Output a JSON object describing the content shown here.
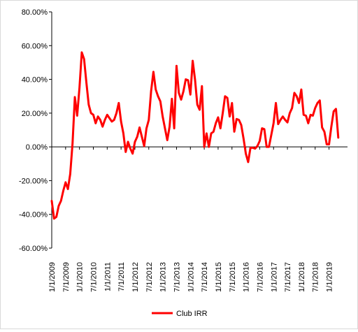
{
  "chart_data": {
    "type": "line",
    "title": "",
    "xlabel": "",
    "ylabel": "",
    "ylim": [
      -60,
      80
    ],
    "yticks": [
      80,
      60,
      40,
      20,
      0,
      -20,
      -40,
      -60
    ],
    "ytick_labels": [
      "80.00%",
      "60.00%",
      "40.00%",
      "20.00%",
      "0.00%",
      "-20.00%",
      "-40.00%",
      "-60.00%"
    ],
    "xtick_labels": [
      "1/1/2009",
      "7/1/2009",
      "1/1/2010",
      "7/1/2010",
      "1/1/2011",
      "7/1/2011",
      "1/1/2012",
      "7/1/2012",
      "1/1/2013",
      "7/1/2013",
      "1/1/2014",
      "7/1/2014",
      "1/1/2015",
      "7/1/2015",
      "1/1/2016",
      "7/1/2016",
      "1/1/2017",
      "7/1/2017",
      "1/1/2018",
      "7/1/2018",
      "1/1/2019"
    ],
    "grid": false,
    "legend_position": "bottom",
    "series": [
      {
        "name": "Club IRR",
        "color": "#ff0000",
        "values": [
          -32.0,
          -42.5,
          -41.5,
          -35.0,
          -32.0,
          -26.0,
          -21.0,
          -25.0,
          -16.0,
          2.0,
          29.5,
          18.5,
          35.0,
          56.0,
          52.0,
          38.0,
          25.0,
          20.0,
          19.0,
          14.0,
          18.0,
          16.0,
          12.0,
          16.0,
          19.0,
          17.0,
          15.0,
          16.0,
          20.0,
          26.0,
          15.0,
          8.0,
          -3.0,
          3.0,
          -1.0,
          -4.0,
          3.0,
          6.0,
          11.5,
          6.0,
          0.5,
          11.0,
          16.0,
          33.0,
          44.5,
          34.0,
          30.0,
          27.0,
          18.0,
          11.0,
          4.0,
          12.0,
          28.5,
          11.0,
          48.0,
          32.0,
          28.0,
          33.0,
          40.0,
          39.5,
          31.0,
          51.0,
          40.0,
          25.0,
          22.0,
          36.0,
          0.0,
          8.0,
          0.0,
          8.0,
          9.0,
          14.0,
          17.5,
          11.0,
          20.0,
          30.0,
          29.0,
          18.0,
          26.0,
          9.0,
          16.5,
          16.0,
          13.0,
          5.0,
          -4.0,
          -9.0,
          -0.5,
          -0.5,
          -1.0,
          0.5,
          3.5,
          11.0,
          10.5,
          0.0,
          0.0,
          7.0,
          14.0,
          26.0,
          13.5,
          16.0,
          18.0,
          16.0,
          14.5,
          20.0,
          23.0,
          32.0,
          30.0,
          26.0,
          34.0,
          19.0,
          18.5,
          14.0,
          19.0,
          18.5,
          23.0,
          26.0,
          27.5,
          11.5,
          9.0,
          1.5,
          1.5,
          12.0,
          21.0,
          22.5,
          5.5
        ]
      }
    ]
  }
}
